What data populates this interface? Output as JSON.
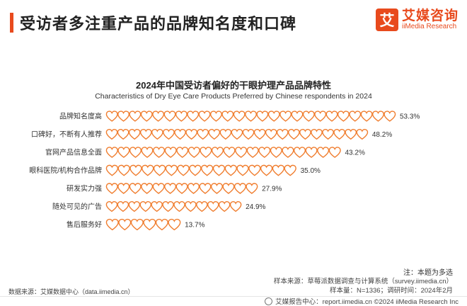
{
  "page_title": "受访者多注重产品的品牌知名度和口碑",
  "logo": {
    "mark": "艾",
    "cn": "艾媒咨询",
    "en": "iiMedia Research"
  },
  "chart_data": {
    "type": "bar",
    "title": "2024年中国受访者偏好的干眼护理产品品牌特性",
    "subtitle": "Characteristics of Dry Eye Care Products Preferred by Chinese respondents in 2024",
    "categories": [
      "品牌知名度高",
      "口碑好，不断有人推荐",
      "官网产品信息全面",
      "眼科医院/机构合作品牌",
      "研发实力强",
      "随处可见的广告",
      "售后服务好"
    ],
    "values": [
      53.3,
      48.2,
      43.2,
      35.0,
      27.9,
      24.9,
      13.7
    ],
    "value_labels": [
      "53.3%",
      "48.2%",
      "43.2%",
      "35.0%",
      "27.9%",
      "24.9%",
      "13.7%"
    ],
    "unit": "%",
    "mark_color": "#f07d2e"
  },
  "note": "注：本题为多选",
  "sample_source": "样本来源：草莓派数据调查与计算系统（survey.iimedia.cn）",
  "sample_size": "样本量：N=1336；调研时间：2024年2月",
  "data_source": "数据来源：艾媒数据中心（data.iimedia.cn）",
  "footer": "艾媒报告中心：report.iimedia.cn ©2024 iiMedia Research Inc"
}
